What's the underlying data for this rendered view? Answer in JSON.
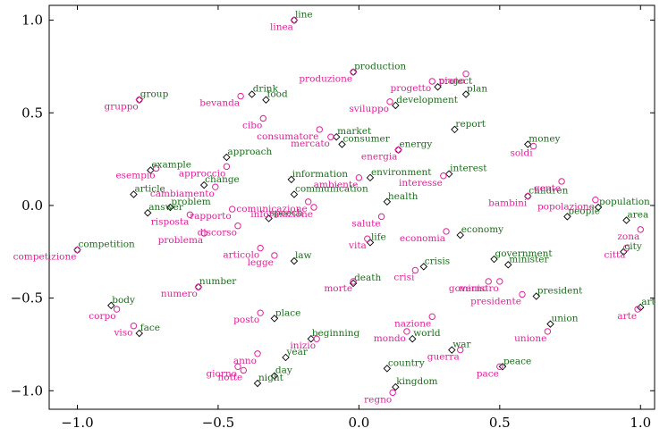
{
  "chart_data": {
    "type": "scatter",
    "title": "",
    "xlabel": "",
    "ylabel": "",
    "xlim": [
      -1.1,
      1.05
    ],
    "ylim": [
      -1.1,
      1.08
    ],
    "xticks": [
      "−1.0",
      "−0.5",
      "0.0",
      "0.5",
      "1.0"
    ],
    "yticks": [
      "1.0",
      "0.5",
      "0.0",
      "−0.5",
      "−1.0"
    ],
    "xtick_values": [
      -1.0,
      -0.5,
      0.0,
      0.5,
      1.0
    ],
    "ytick_values": [
      1.0,
      0.5,
      0.0,
      -0.5,
      -1.0
    ],
    "grid": false,
    "series": [
      {
        "marker": "diamond",
        "color": "#1a6e1a",
        "points": [
          {
            "x": -0.23,
            "y": 1.0,
            "label": "line"
          },
          {
            "x": -0.02,
            "y": 0.72,
            "label": "production"
          },
          {
            "x": 0.28,
            "y": 0.64,
            "label": "project"
          },
          {
            "x": 0.38,
            "y": 0.6,
            "label": "plan"
          },
          {
            "x": 0.13,
            "y": 0.54,
            "label": "development"
          },
          {
            "x": -0.78,
            "y": 0.57,
            "label": "group"
          },
          {
            "x": -0.38,
            "y": 0.6,
            "label": "drink"
          },
          {
            "x": -0.33,
            "y": 0.57,
            "label": "food"
          },
          {
            "x": 0.34,
            "y": 0.41,
            "label": "report"
          },
          {
            "x": 0.6,
            "y": 0.33,
            "label": "money"
          },
          {
            "x": -0.08,
            "y": 0.37,
            "label": "market"
          },
          {
            "x": -0.06,
            "y": 0.33,
            "label": "consumer"
          },
          {
            "x": 0.14,
            "y": 0.3,
            "label": "energy"
          },
          {
            "x": -0.47,
            "y": 0.26,
            "label": "approach"
          },
          {
            "x": -0.74,
            "y": 0.19,
            "label": "example"
          },
          {
            "x": 0.32,
            "y": 0.17,
            "label": "interest"
          },
          {
            "x": 0.04,
            "y": 0.15,
            "label": "environment"
          },
          {
            "x": -0.24,
            "y": 0.14,
            "label": "information"
          },
          {
            "x": -0.55,
            "y": 0.11,
            "label": "change"
          },
          {
            "x": -0.23,
            "y": 0.06,
            "label": "communication"
          },
          {
            "x": -0.8,
            "y": 0.06,
            "label": "article"
          },
          {
            "x": 0.1,
            "y": 0.02,
            "label": "health"
          },
          {
            "x": 0.6,
            "y": 0.05,
            "label": "children"
          },
          {
            "x": 0.85,
            "y": -0.01,
            "label": "population"
          },
          {
            "x": -0.75,
            "y": -0.04,
            "label": "answer"
          },
          {
            "x": -0.67,
            "y": -0.01,
            "label": "problem"
          },
          {
            "x": 0.74,
            "y": -0.06,
            "label": "people"
          },
          {
            "x": 0.95,
            "y": -0.08,
            "label": "area"
          },
          {
            "x": -0.32,
            "y": -0.07,
            "label": "speech"
          },
          {
            "x": 0.04,
            "y": -0.2,
            "label": "life"
          },
          {
            "x": 0.36,
            "y": -0.16,
            "label": "economy"
          },
          {
            "x": -1.0,
            "y": -0.24,
            "label": "competition"
          },
          {
            "x": 0.94,
            "y": -0.25,
            "label": "city"
          },
          {
            "x": 0.48,
            "y": -0.29,
            "label": "government"
          },
          {
            "x": 0.53,
            "y": -0.32,
            "label": "minister"
          },
          {
            "x": -0.23,
            "y": -0.3,
            "label": "law"
          },
          {
            "x": 0.23,
            "y": -0.33,
            "label": "crisis"
          },
          {
            "x": -0.02,
            "y": -0.42,
            "label": "death"
          },
          {
            "x": -0.57,
            "y": -0.44,
            "label": "number"
          },
          {
            "x": 0.63,
            "y": -0.49,
            "label": "president"
          },
          {
            "x": -0.88,
            "y": -0.54,
            "label": "body"
          },
          {
            "x": 1.0,
            "y": -0.55,
            "label": "art"
          },
          {
            "x": -0.3,
            "y": -0.61,
            "label": "place"
          },
          {
            "x": 0.68,
            "y": -0.64,
            "label": "union"
          },
          {
            "x": -0.78,
            "y": -0.69,
            "label": "face"
          },
          {
            "x": -0.17,
            "y": -0.72,
            "label": "beginning"
          },
          {
            "x": 0.19,
            "y": -0.72,
            "label": "world"
          },
          {
            "x": 0.33,
            "y": -0.78,
            "label": "war"
          },
          {
            "x": -0.26,
            "y": -0.82,
            "label": "year"
          },
          {
            "x": 0.51,
            "y": -0.87,
            "label": "peace"
          },
          {
            "x": 0.1,
            "y": -0.88,
            "label": "country"
          },
          {
            "x": -0.3,
            "y": -0.92,
            "label": "day"
          },
          {
            "x": -0.36,
            "y": -0.96,
            "label": "night"
          },
          {
            "x": 0.13,
            "y": -0.98,
            "label": "kingdom"
          }
        ]
      },
      {
        "marker": "circle",
        "color": "#e2209c",
        "points": [
          {
            "x": -0.23,
            "y": 1.0,
            "label": "linea"
          },
          {
            "x": -0.02,
            "y": 0.72,
            "label": "produzione"
          },
          {
            "x": 0.26,
            "y": 0.67,
            "label": "progetto"
          },
          {
            "x": 0.38,
            "y": 0.71,
            "label": "piano"
          },
          {
            "x": 0.11,
            "y": 0.56,
            "label": "sviluppo"
          },
          {
            "x": -0.78,
            "y": 0.57,
            "label": "gruppo"
          },
          {
            "x": -0.42,
            "y": 0.59,
            "label": "bevanda"
          },
          {
            "x": -0.34,
            "y": 0.47,
            "label": "cibo"
          },
          {
            "x": 0.62,
            "y": 0.32,
            "label": "soldi"
          },
          {
            "x": -0.14,
            "y": 0.41,
            "label": "consumatore"
          },
          {
            "x": -0.1,
            "y": 0.37,
            "label": "mercato"
          },
          {
            "x": 0.14,
            "y": 0.3,
            "label": "energia"
          },
          {
            "x": -0.47,
            "y": 0.21,
            "label": "approccio"
          },
          {
            "x": -0.72,
            "y": 0.2,
            "label": "esempio"
          },
          {
            "x": 0.3,
            "y": 0.16,
            "label": "interesse"
          },
          {
            "x": 0.0,
            "y": 0.15,
            "label": "ambiente"
          },
          {
            "x": -0.51,
            "y": 0.1,
            "label": "cambiamento"
          },
          {
            "x": -0.18,
            "y": 0.02,
            "label": "comunicazione"
          },
          {
            "x": -0.16,
            "y": -0.01,
            "label": "informazione"
          },
          {
            "x": 0.72,
            "y": 0.13,
            "label": "gente"
          },
          {
            "x": 0.6,
            "y": 0.05,
            "label": "bambini"
          },
          {
            "x": 0.84,
            "y": 0.03,
            "label": "popolazione"
          },
          {
            "x": -0.45,
            "y": -0.02,
            "label": "rapporto"
          },
          {
            "x": -0.6,
            "y": -0.05,
            "label": "risposta"
          },
          {
            "x": -0.55,
            "y": -0.15,
            "label": "problema"
          },
          {
            "x": -0.43,
            "y": -0.11,
            "label": "discorso"
          },
          {
            "x": 0.08,
            "y": -0.06,
            "label": "salute"
          },
          {
            "x": 0.03,
            "y": -0.18,
            "label": "vita"
          },
          {
            "x": 0.31,
            "y": -0.14,
            "label": "economia"
          },
          {
            "x": 1.0,
            "y": -0.13,
            "label": "zona"
          },
          {
            "x": -1.0,
            "y": -0.24,
            "label": "competizione"
          },
          {
            "x": 0.95,
            "y": -0.23,
            "label": "citta"
          },
          {
            "x": -0.35,
            "y": -0.23,
            "label": "articolo"
          },
          {
            "x": -0.3,
            "y": -0.27,
            "label": "legge"
          },
          {
            "x": 0.2,
            "y": -0.35,
            "label": "crisi"
          },
          {
            "x": -0.02,
            "y": -0.41,
            "label": "morte"
          },
          {
            "x": 0.46,
            "y": -0.41,
            "label": "governo"
          },
          {
            "x": 0.5,
            "y": -0.41,
            "label": "ministro"
          },
          {
            "x": 0.58,
            "y": -0.48,
            "label": "presidente"
          },
          {
            "x": -0.57,
            "y": -0.44,
            "label": "numero"
          },
          {
            "x": -0.86,
            "y": -0.56,
            "label": "corpo"
          },
          {
            "x": 0.99,
            "y": -0.56,
            "label": "arte"
          },
          {
            "x": -0.35,
            "y": -0.58,
            "label": "posto"
          },
          {
            "x": -0.8,
            "y": -0.65,
            "label": "viso"
          },
          {
            "x": 0.26,
            "y": -0.6,
            "label": "nazione"
          },
          {
            "x": -0.15,
            "y": -0.72,
            "label": "inizio"
          },
          {
            "x": 0.17,
            "y": -0.68,
            "label": "mondo"
          },
          {
            "x": 0.67,
            "y": -0.68,
            "label": "unione"
          },
          {
            "x": 0.36,
            "y": -0.78,
            "label": "guerra"
          },
          {
            "x": -0.36,
            "y": -0.8,
            "label": "anno"
          },
          {
            "x": 0.5,
            "y": -0.87,
            "label": "pace"
          },
          {
            "x": -0.43,
            "y": -0.87,
            "label": "giorno"
          },
          {
            "x": -0.41,
            "y": -0.89,
            "label": "notte"
          },
          {
            "x": 0.12,
            "y": -1.01,
            "label": "regno"
          }
        ]
      }
    ]
  }
}
